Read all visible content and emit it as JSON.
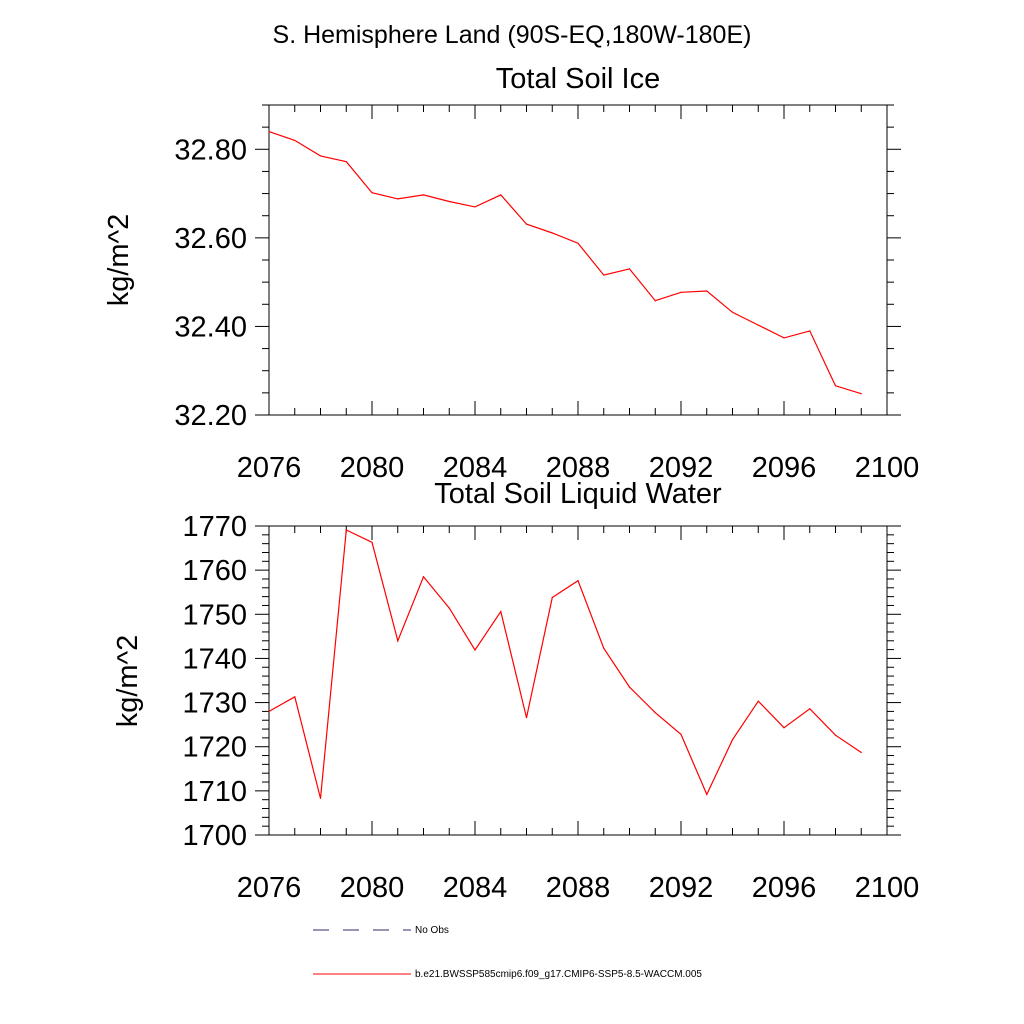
{
  "figure": {
    "title": "S. Hemisphere Land (90S-EQ,180W-180E)"
  },
  "chart_data": [
    {
      "type": "line",
      "title": "Total Soil Ice",
      "xlabel": "",
      "ylabel": "kg/m^2",
      "xlim": [
        2076,
        2100
      ],
      "ylim": [
        32.2,
        32.9
      ],
      "xticks": [
        2076,
        2080,
        2084,
        2088,
        2092,
        2096,
        2100
      ],
      "xtick_labels": [
        "2076",
        "2080",
        "2084",
        "2088",
        "2092",
        "2096",
        "2100"
      ],
      "yticks": [
        32.2,
        32.4,
        32.6,
        32.8
      ],
      "ytick_labels": [
        "32.20",
        "32.40",
        "32.60",
        "32.80"
      ],
      "y_minor_step": 0.05,
      "x_minor_step": 1,
      "series": [
        {
          "name": "b.e21.BWSSP585cmip6.f09_g17.CMIP6-SSP5-8.5-WACCM.005",
          "color": "#ff0000",
          "x": [
            2076,
            2077,
            2078,
            2079,
            2080,
            2081,
            2082,
            2083,
            2084,
            2085,
            2086,
            2087,
            2088,
            2089,
            2090,
            2091,
            2092,
            2093,
            2094,
            2095,
            2096,
            2097,
            2098,
            2099
          ],
          "values": [
            32.84,
            32.82,
            32.785,
            32.772,
            32.702,
            32.688,
            32.697,
            32.682,
            32.67,
            32.697,
            32.631,
            32.611,
            32.588,
            32.516,
            32.53,
            32.458,
            32.477,
            32.48,
            32.432,
            32.403,
            32.374,
            32.39,
            32.266,
            32.248
          ]
        }
      ]
    },
    {
      "type": "line",
      "title": "Total Soil Liquid Water",
      "xlabel": "",
      "ylabel": "kg/m^2",
      "xlim": [
        2076,
        2100
      ],
      "ylim": [
        1700,
        1770
      ],
      "xticks": [
        2076,
        2080,
        2084,
        2088,
        2092,
        2096,
        2100
      ],
      "xtick_labels": [
        "2076",
        "2080",
        "2084",
        "2088",
        "2092",
        "2096",
        "2100"
      ],
      "yticks": [
        1700,
        1710,
        1720,
        1730,
        1740,
        1750,
        1760,
        1770
      ],
      "ytick_labels": [
        "1700",
        "1710",
        "1720",
        "1730",
        "1740",
        "1750",
        "1760",
        "1770"
      ],
      "y_minor_step": 2,
      "x_minor_step": 1,
      "series": [
        {
          "name": "b.e21.BWSSP585cmip6.f09_g17.CMIP6-SSP5-8.5-WACCM.005",
          "color": "#ff0000",
          "x": [
            2076,
            2077,
            2078,
            2079,
            2080,
            2081,
            2082,
            2083,
            2084,
            2085,
            2086,
            2087,
            2088,
            2089,
            2090,
            2091,
            2092,
            2093,
            2094,
            2095,
            2096,
            2097,
            2098,
            2099
          ],
          "values": [
            1728.0,
            1731.3,
            1708.3,
            1769.1,
            1766.3,
            1744.0,
            1758.5,
            1751.4,
            1741.9,
            1750.6,
            1726.6,
            1753.8,
            1757.6,
            1742.3,
            1733.5,
            1727.7,
            1722.8,
            1709.2,
            1721.6,
            1730.3,
            1724.3,
            1728.6,
            1722.6,
            1718.7
          ]
        }
      ]
    }
  ],
  "legend": {
    "items": [
      {
        "label": "No Obs",
        "style": "dashed",
        "color": "#2b2b6e"
      },
      {
        "label": "b.e21.BWSSP585cmip6.f09_g17.CMIP6-SSP5-8.5-WACCM.005",
        "style": "solid",
        "color": "#ff0000"
      }
    ]
  }
}
